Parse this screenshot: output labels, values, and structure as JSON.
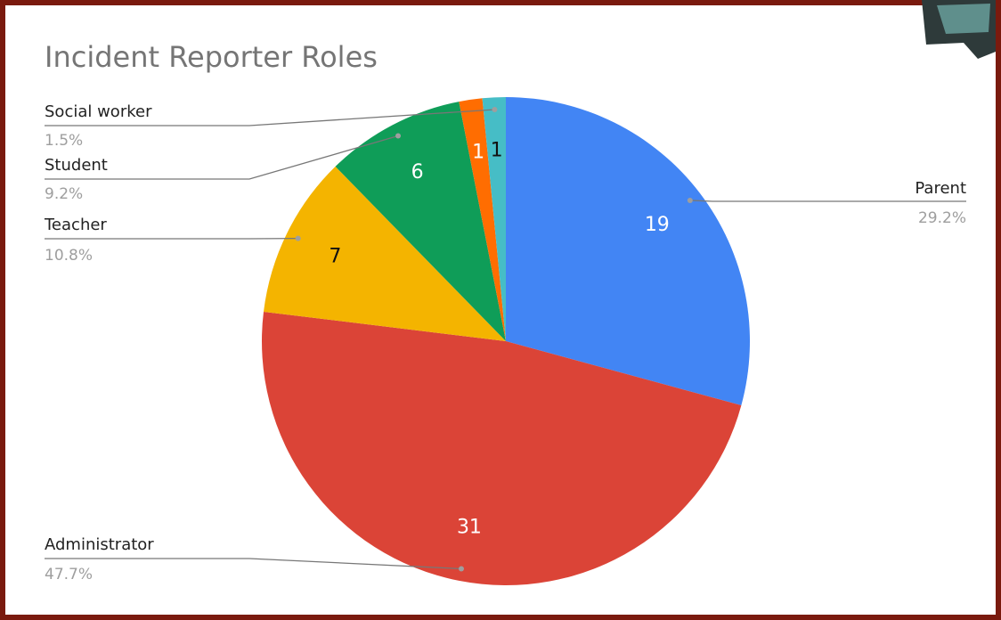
{
  "chart_data": {
    "type": "pie",
    "title": "Incident Reporter Roles",
    "categories": [
      "Parent",
      "Administrator",
      "Teacher",
      "Student",
      null,
      "Social worker"
    ],
    "values": [
      19,
      31,
      7,
      6,
      1,
      1
    ],
    "percent_labels": [
      "29.2%",
      "47.7%",
      "10.8%",
      "9.2%",
      null,
      "1.5%"
    ],
    "colors": [
      "#4285f4",
      "#db4437",
      "#f4b400",
      "#0f9d58",
      "#ff6d01",
      "#46bdc6"
    ]
  }
}
